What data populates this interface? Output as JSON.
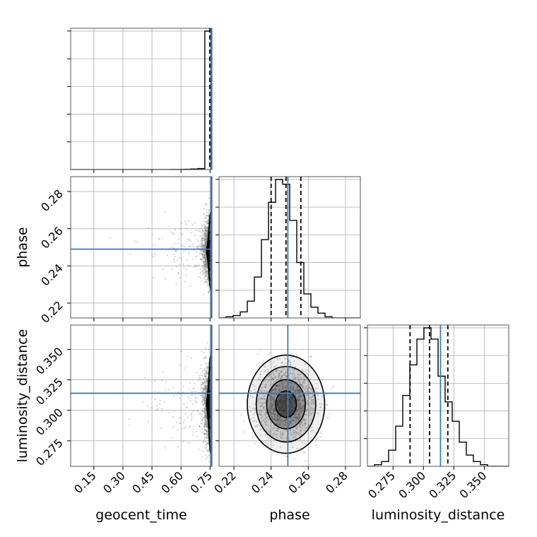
{
  "chart_data": {
    "type": "corner",
    "parameters": [
      "geocent_time",
      "phase",
      "luminosity_distance"
    ],
    "axis_labels": {
      "geocent_time": "geocent_time",
      "phase": "phase",
      "luminosity_distance": "luminosity_distance"
    },
    "colors": {
      "truth": "#3b7bbf",
      "histogram": "#000000",
      "samples": "#808080",
      "grid": "#b0b0b0"
    },
    "grid": true,
    "ticks": {
      "geocent_time": [
        "0.15",
        "0.30",
        "0.45",
        "0.60",
        "0.75"
      ],
      "phase": [
        "0.22",
        "0.24",
        "0.26",
        "0.28"
      ],
      "luminosity_distance": [
        "0.275",
        "0.300",
        "0.325",
        "0.350"
      ]
    },
    "ranges": {
      "geocent_time": [
        0.03,
        0.76
      ],
      "phase": [
        0.212,
        0.288
      ],
      "luminosity_distance": [
        0.254,
        0.37
      ]
    },
    "truths": {
      "geocent_time": 0.755,
      "phase": 0.249,
      "luminosity_distance": 0.314
    },
    "quantiles": {
      "geocent_time": [
        0.749,
        0.754,
        0.756
      ],
      "phase": [
        0.24,
        0.248,
        0.256
      ],
      "luminosity_distance": [
        0.289,
        0.305,
        0.32
      ]
    },
    "histograms": {
      "geocent_time": {
        "edges": [
          0.03,
          0.066,
          0.103,
          0.139,
          0.176,
          0.212,
          0.249,
          0.285,
          0.322,
          0.358,
          0.395,
          0.431,
          0.468,
          0.504,
          0.541,
          0.577,
          0.614,
          0.65,
          0.687,
          0.723,
          0.76
        ],
        "counts": [
          0,
          0,
          0,
          0,
          0,
          0,
          0,
          0,
          0,
          0,
          0,
          0,
          0,
          0,
          1,
          1,
          2,
          4,
          7,
          1000
        ]
      },
      "phase": {
        "edges": [
          0.212,
          0.2158,
          0.2196,
          0.2234,
          0.2272,
          0.231,
          0.2348,
          0.2386,
          0.2424,
          0.2462,
          0.25,
          0.2538,
          0.2576,
          0.2614,
          0.2652,
          0.269,
          0.2728,
          0.2766,
          0.2804,
          0.2842,
          0.288
        ],
        "counts": [
          0,
          2,
          4,
          10,
          28,
          68,
          130,
          192,
          230,
          222,
          162,
          92,
          40,
          18,
          8,
          2,
          0,
          0,
          0,
          0
        ]
      },
      "luminosity_distance": {
        "edges": [
          0.254,
          0.2598,
          0.2656,
          0.2714,
          0.2772,
          0.283,
          0.2888,
          0.2946,
          0.3004,
          0.3062,
          0.312,
          0.3178,
          0.3236,
          0.3294,
          0.3352,
          0.341,
          0.3468,
          0.3526,
          0.3584,
          0.3642,
          0.37
        ],
        "counts": [
          0,
          2,
          6,
          20,
          50,
          88,
          126,
          158,
          172,
          158,
          112,
          80,
          56,
          30,
          14,
          6,
          2,
          0,
          0,
          0
        ]
      }
    }
  }
}
